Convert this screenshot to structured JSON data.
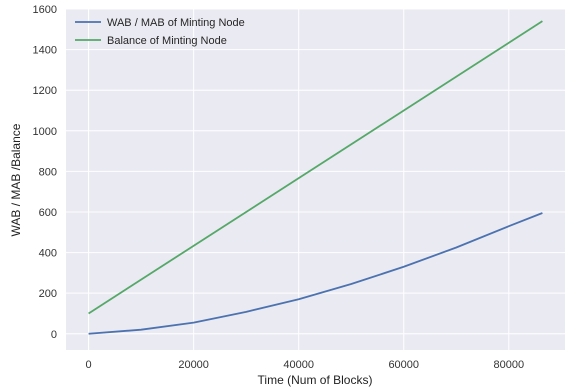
{
  "chart_data": {
    "type": "line",
    "title": "",
    "xlabel": "Time (Num of Blocks)",
    "ylabel": "WAB / MAB /Balance",
    "xlim": [
      -4300,
      90700
    ],
    "ylim": [
      -80,
      1600
    ],
    "xticks": [
      0,
      20000,
      40000,
      60000,
      80000
    ],
    "yticks": [
      0,
      200,
      400,
      600,
      800,
      1000,
      1200,
      1400,
      1600
    ],
    "grid": true,
    "legend_position": "top-left",
    "background_color": "#eaeaf2",
    "grid_color": "#ffffff",
    "series": [
      {
        "name": "WAB / MAB of Minting Node",
        "color": "#4c72b0",
        "x": [
          0,
          10000,
          20000,
          30000,
          40000,
          50000,
          60000,
          70000,
          80000,
          86400
        ],
        "y": [
          0,
          20,
          55,
          108,
          170,
          245,
          330,
          425,
          530,
          595
        ]
      },
      {
        "name": "Balance of Minting Node",
        "color": "#55a868",
        "x": [
          0,
          86400
        ],
        "y": [
          100,
          1540
        ]
      }
    ]
  }
}
